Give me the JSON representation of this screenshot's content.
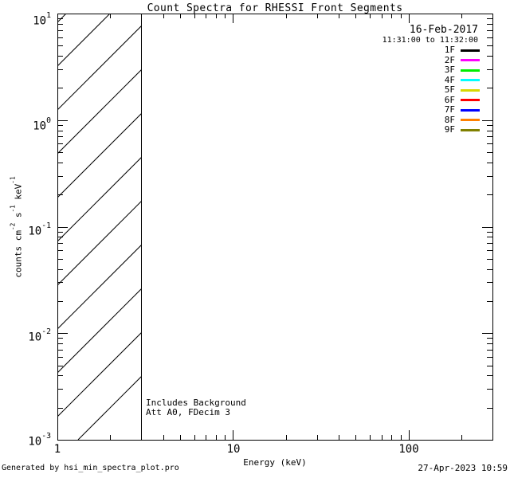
{
  "title": "Count Spectra for RHESSI Front Segments",
  "legend": {
    "date": "16-Feb-2017",
    "time_range": "11:31:00 to 11:32:00",
    "items": [
      {
        "label": "1F",
        "color": "#000000"
      },
      {
        "label": "2F",
        "color": "#ff00ff"
      },
      {
        "label": "3F",
        "color": "#00ee00"
      },
      {
        "label": "4F",
        "color": "#00ffff"
      },
      {
        "label": "5F",
        "color": "#d8d800"
      },
      {
        "label": "6F",
        "color": "#ff0000"
      },
      {
        "label": "7F",
        "color": "#0000ff"
      },
      {
        "label": "8F",
        "color": "#ff8000"
      },
      {
        "label": "9F",
        "color": "#808000"
      }
    ]
  },
  "annotations": {
    "line1": "Includes Background",
    "line2": "Att A0, FDecim 3"
  },
  "footer": {
    "left": "Generated by hsi_min_spectra_plot.pro",
    "right": "27-Apr-2023 10:59"
  },
  "chart_data": {
    "type": "line",
    "title": "Count Spectra for RHESSI Front Segments",
    "xlabel": "Energy (keV)",
    "ylabel": "counts cm^-2 s^-1 keV^-1",
    "ylabel_parts": [
      "counts cm",
      "-2",
      " s",
      "-1",
      " keV",
      "-1"
    ],
    "x_scale": "log",
    "y_scale": "log",
    "xlim": [
      1,
      300
    ],
    "ylim": [
      0.001,
      10
    ],
    "grid": false,
    "legend_position": "top-right",
    "x_ticks": [
      {
        "value": 1,
        "label": "1"
      },
      {
        "value": 10,
        "label": "10"
      },
      {
        "value": 100,
        "label": "100"
      }
    ],
    "y_ticks": [
      {
        "value": 10,
        "base": "10",
        "exp": "1"
      },
      {
        "value": 1,
        "base": "10",
        "exp": "0"
      },
      {
        "value": 0.1,
        "base": "10",
        "exp": "-1"
      },
      {
        "value": 0.01,
        "base": "10",
        "exp": "-2"
      },
      {
        "value": 0.001,
        "base": "10",
        "exp": "-3"
      }
    ],
    "hatched_band": {
      "x_from": 1,
      "x_to": 3,
      "style": "diagonal-hatch",
      "note": "no spectra curves drawn; plot area empty except hatched low-energy band"
    },
    "series": [
      {
        "name": "1F",
        "color": "#000000",
        "values": []
      },
      {
        "name": "2F",
        "color": "#ff00ff",
        "values": []
      },
      {
        "name": "3F",
        "color": "#00ee00",
        "values": []
      },
      {
        "name": "4F",
        "color": "#00ffff",
        "values": []
      },
      {
        "name": "5F",
        "color": "#d8d800",
        "values": []
      },
      {
        "name": "6F",
        "color": "#ff0000",
        "values": []
      },
      {
        "name": "7F",
        "color": "#0000ff",
        "values": []
      },
      {
        "name": "8F",
        "color": "#ff8000",
        "values": []
      },
      {
        "name": "9F",
        "color": "#808000",
        "values": []
      }
    ]
  }
}
